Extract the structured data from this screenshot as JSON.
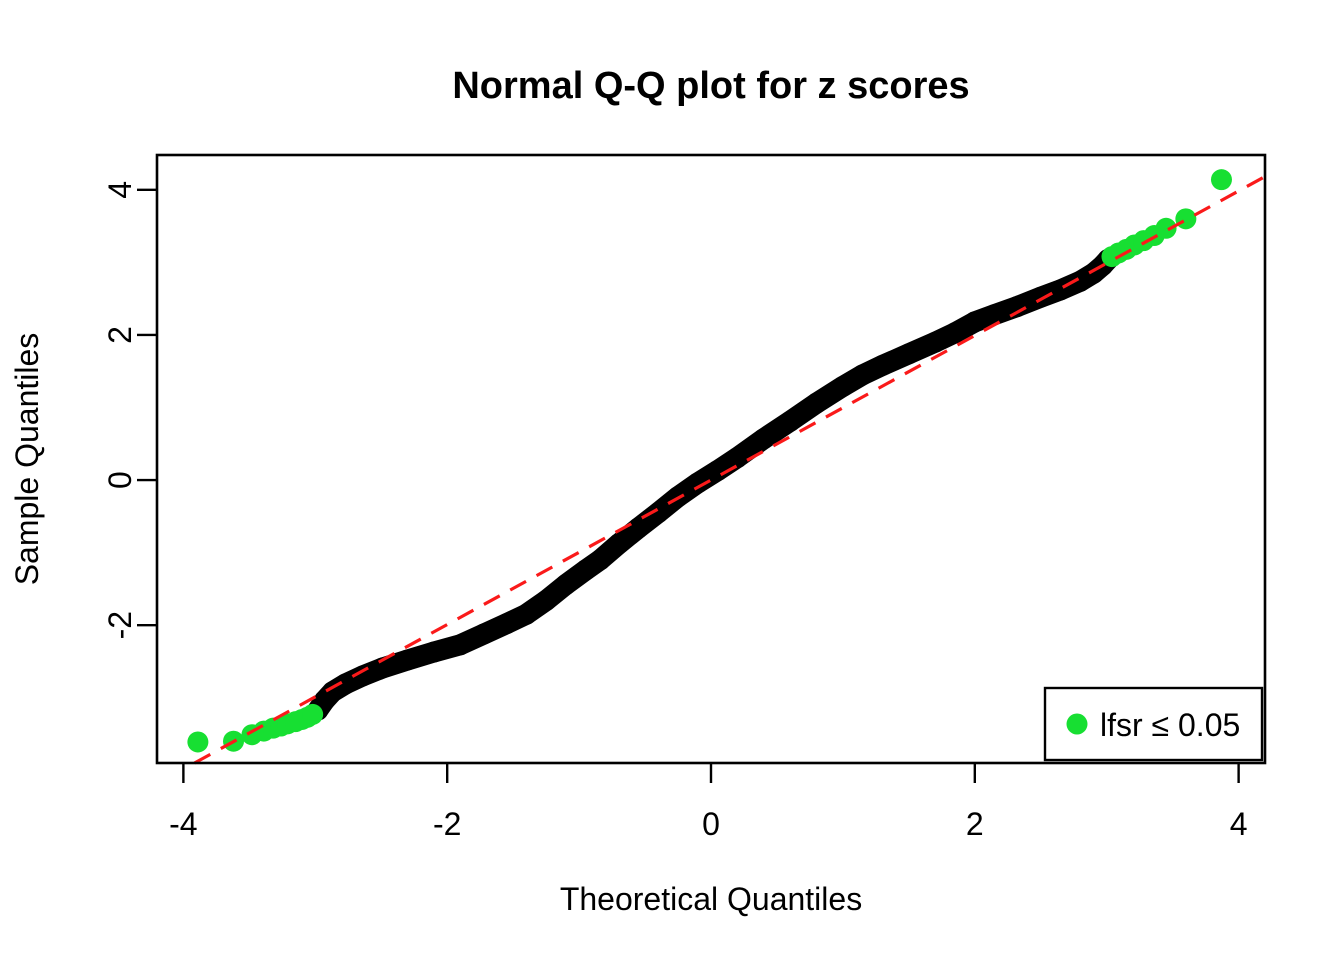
{
  "legend": {
    "label": "lfsr ≤ 0.05",
    "position": "bottomright"
  },
  "chart_data": {
    "type": "scatter",
    "subtype": "normal-qq-plot",
    "title": "Normal Q-Q plot for z scores",
    "xlabel": "Theoretical Quantiles",
    "ylabel": "Sample Quantiles",
    "xlim": [
      -4.2,
      4.2
    ],
    "ylim": [
      -3.9,
      4.48
    ],
    "x_ticks": [
      -4,
      -2,
      0,
      2,
      4
    ],
    "y_ticks": [
      -2,
      0,
      2,
      4
    ],
    "grid": false,
    "reference_line": {
      "slope": 0.996,
      "intercept": 0.0,
      "color": "#FA1A1A",
      "style": "dashed"
    },
    "main_series": {
      "name": "z scores",
      "color": "#000000",
      "marker_radius": 10.5,
      "points": [
        [
          -2.98,
          -3.17
        ],
        [
          -2.93,
          -3.04
        ],
        [
          -2.87,
          -2.92
        ],
        [
          -2.77,
          -2.81
        ],
        [
          -2.64,
          -2.7
        ],
        [
          -2.49,
          -2.59
        ],
        [
          -2.3,
          -2.48
        ],
        [
          -2.1,
          -2.37
        ],
        [
          -1.9,
          -2.27
        ],
        [
          -1.72,
          -2.12
        ],
        [
          -1.55,
          -1.98
        ],
        [
          -1.4,
          -1.85
        ],
        [
          -1.25,
          -1.66
        ],
        [
          -1.1,
          -1.44
        ],
        [
          -0.95,
          -1.24
        ],
        [
          -0.84,
          -1.1
        ],
        [
          -0.7,
          -0.88
        ],
        [
          -0.55,
          -0.66
        ],
        [
          -0.4,
          -0.45
        ],
        [
          -0.25,
          -0.23
        ],
        [
          -0.1,
          -0.04
        ],
        [
          0.05,
          0.13
        ],
        [
          0.2,
          0.31
        ],
        [
          0.4,
          0.57
        ],
        [
          0.6,
          0.81
        ],
        [
          0.8,
          1.06
        ],
        [
          1.0,
          1.29
        ],
        [
          1.15,
          1.45
        ],
        [
          1.3,
          1.58
        ],
        [
          1.5,
          1.74
        ],
        [
          1.7,
          1.9
        ],
        [
          1.85,
          2.03
        ],
        [
          2.0,
          2.18
        ],
        [
          2.15,
          2.28
        ],
        [
          2.32,
          2.39
        ],
        [
          2.5,
          2.52
        ],
        [
          2.65,
          2.62
        ],
        [
          2.8,
          2.74
        ],
        [
          2.9,
          2.85
        ],
        [
          2.97,
          2.96
        ],
        [
          3.01,
          3.04
        ]
      ]
    },
    "highlight_series": {
      "name": "lfsr ≤ 0.05",
      "color": "#17DF32",
      "marker_radius": 10.5,
      "points_low": [
        [
          -3.89,
          -3.61
        ],
        [
          -3.62,
          -3.6
        ],
        [
          -3.48,
          -3.51
        ],
        [
          -3.39,
          -3.46
        ],
        [
          -3.32,
          -3.42
        ],
        [
          -3.26,
          -3.39
        ],
        [
          -3.21,
          -3.36
        ],
        [
          -3.15,
          -3.33
        ],
        [
          -3.1,
          -3.3
        ],
        [
          -3.06,
          -3.27
        ],
        [
          -3.02,
          -3.23
        ]
      ],
      "points_high": [
        [
          3.04,
          3.08
        ],
        [
          3.09,
          3.13
        ],
        [
          3.15,
          3.18
        ],
        [
          3.21,
          3.24
        ],
        [
          3.28,
          3.3
        ],
        [
          3.36,
          3.37
        ],
        [
          3.45,
          3.47
        ],
        [
          3.6,
          3.6
        ],
        [
          3.87,
          4.14
        ]
      ]
    }
  }
}
